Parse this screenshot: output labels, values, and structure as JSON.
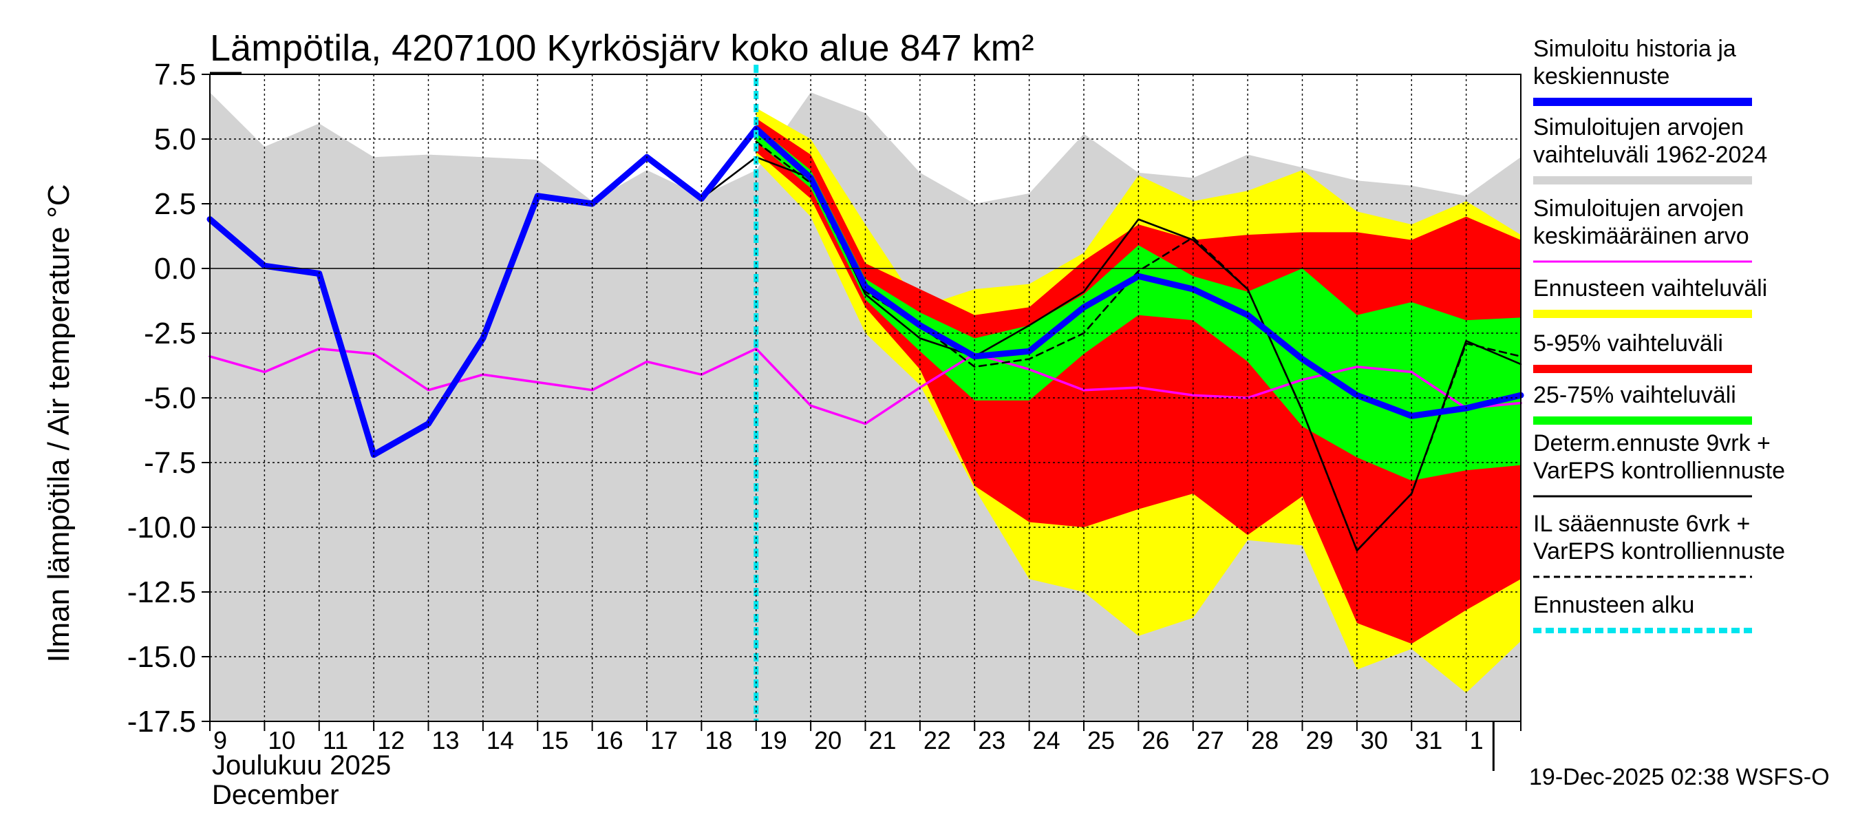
{
  "chart_data": {
    "type": "line",
    "title": "Lämpötila, 4207100 Kyrkösjärv koko alue 847 km²",
    "ylabel": "Ilman lämpötila / Air temperature    °C",
    "xlabel_line1": "Joulukuu  2025",
    "xlabel_line2": "December",
    "ylim": [
      -17.5,
      7.5
    ],
    "yticks": [
      7.5,
      5.0,
      2.5,
      0.0,
      -2.5,
      -5.0,
      -7.5,
      -10.0,
      -12.5,
      -15.0,
      -17.5
    ],
    "ytick_labels": [
      "7.5",
      "5.0",
      "2.5",
      "0.0",
      "-2.5",
      "-5.0",
      "-7.5",
      "-10.0",
      "-12.5",
      "-15.0",
      "-17.5"
    ],
    "x_day_labels": [
      "9",
      "10",
      "11",
      "12",
      "13",
      "14",
      "15",
      "16",
      "17",
      "18",
      "19",
      "20",
      "21",
      "22",
      "23",
      "24",
      "25",
      "26",
      "27",
      "28",
      "29",
      "30",
      "31",
      "1"
    ],
    "x_values": [
      0,
      1,
      2,
      3,
      4,
      5,
      6,
      7,
      8,
      9,
      10,
      11,
      12,
      13,
      14,
      15,
      16,
      17,
      18,
      19,
      20,
      21,
      22,
      23,
      24
    ],
    "forecast_start_x": 10,
    "month_boundary_x": 23.5,
    "series": [
      {
        "name": "Simuloitujen arvojen vaihteluväli 1962-2024",
        "kind": "band",
        "x": [
          0,
          1,
          2,
          3,
          4,
          5,
          6,
          7,
          8,
          9,
          10,
          11,
          12,
          13,
          14,
          15,
          16,
          17,
          18,
          19,
          20,
          21,
          22,
          23,
          24
        ],
        "upper": [
          6.8,
          4.7,
          5.6,
          4.3,
          4.4,
          4.3,
          4.2,
          2.6,
          3.8,
          2.8,
          3.8,
          6.8,
          6.0,
          3.7,
          2.5,
          2.9,
          5.2,
          3.7,
          3.5,
          4.4,
          3.9,
          3.4,
          3.2,
          2.8,
          4.3
        ],
        "lower": [
          -17.5,
          -17.5,
          -17.5,
          -17.5,
          -17.5,
          -17.5,
          -17.5,
          -17.5,
          -17.5,
          -17.5,
          -17.5,
          -17.5,
          -17.5,
          -17.5,
          -17.5,
          -17.5,
          -17.5,
          -17.5,
          -17.5,
          -17.5,
          -17.5,
          -17.5,
          -17.5,
          -17.5,
          -17.5
        ]
      },
      {
        "name": "Ennusteen vaihteluväli",
        "kind": "band",
        "x": [
          10,
          11,
          12,
          13,
          14,
          15,
          16,
          17,
          18,
          19,
          20,
          21,
          22,
          23,
          24
        ],
        "upper": [
          6.2,
          5.0,
          1.7,
          -1.5,
          -0.8,
          -0.6,
          0.6,
          3.6,
          2.6,
          3.0,
          3.8,
          2.2,
          1.7,
          2.6,
          1.3
        ],
        "lower": [
          4.2,
          2.0,
          -2.5,
          -4.5,
          -8.5,
          -12.0,
          -12.5,
          -14.2,
          -13.5,
          -10.5,
          -10.7,
          -15.5,
          -14.7,
          -16.4,
          -14.4
        ]
      },
      {
        "name": "5-95% vaihteluväli",
        "kind": "band",
        "x": [
          10,
          11,
          12,
          13,
          14,
          15,
          16,
          17,
          18,
          19,
          20,
          21,
          22,
          23,
          24
        ],
        "upper": [
          5.8,
          4.4,
          0.2,
          -0.8,
          -1.8,
          -1.5,
          0.3,
          1.7,
          1.1,
          1.3,
          1.4,
          1.4,
          1.1,
          2.0,
          1.1
        ],
        "lower": [
          4.5,
          2.7,
          -1.5,
          -3.9,
          -8.4,
          -9.8,
          -10.0,
          -9.3,
          -8.7,
          -10.3,
          -8.8,
          -13.7,
          -14.5,
          -13.2,
          -12.0
        ]
      },
      {
        "name": "25-75% vaihteluväli",
        "kind": "band",
        "x": [
          10,
          11,
          12,
          13,
          14,
          15,
          16,
          17,
          18,
          19,
          20,
          21,
          22,
          23,
          24
        ],
        "upper": [
          5.5,
          3.8,
          -0.4,
          -1.7,
          -2.7,
          -2.2,
          -1.0,
          0.9,
          -0.3,
          -0.9,
          0.0,
          -1.8,
          -1.3,
          -2.0,
          -1.9
        ],
        "lower": [
          4.9,
          3.1,
          -1.2,
          -3.2,
          -5.1,
          -5.1,
          -3.3,
          -1.8,
          -2.0,
          -3.6,
          -6.1,
          -7.3,
          -8.2,
          -7.8,
          -7.6
        ]
      },
      {
        "name": "Simuloitujen arvojen keskimääräinen arvo",
        "kind": "line",
        "color": "#ff00ff",
        "x": [
          0,
          1,
          2,
          3,
          4,
          5,
          6,
          7,
          8,
          9,
          10,
          11,
          12,
          13,
          14,
          15,
          16,
          17,
          18,
          19,
          20,
          21,
          22,
          23,
          24
        ],
        "values": [
          -3.4,
          -4.0,
          -3.1,
          -3.3,
          -4.7,
          -4.1,
          -4.4,
          -4.7,
          -3.6,
          -4.1,
          -3.1,
          -5.3,
          -6.0,
          -4.6,
          -3.3,
          -3.9,
          -4.7,
          -4.6,
          -4.9,
          -5.0,
          -4.3,
          -3.8,
          -4.0,
          -5.4,
          -5.2
        ]
      },
      {
        "name": "IL sääennuste 6vrk + VarEPS kontrolliennuste",
        "kind": "line",
        "color": "#000000",
        "dashed": true,
        "x": [
          10,
          11,
          12,
          13,
          14,
          15,
          16,
          17,
          18,
          19,
          20,
          21,
          22,
          23,
          24
        ],
        "values": [
          4.9,
          3.3,
          -0.9,
          -2.2,
          -3.8,
          -3.5,
          -2.5,
          -0.1,
          1.2,
          -0.8,
          -5.5,
          -10.9,
          -8.7,
          -2.9,
          -3.4
        ]
      },
      {
        "name": "Determ.ennuste 9vrk + VarEPS kontrolliennuste",
        "kind": "line",
        "color": "#000000",
        "x": [
          8,
          9,
          10,
          11,
          12,
          13,
          14,
          15,
          16,
          17,
          18,
          19,
          20,
          21,
          22,
          23,
          24
        ],
        "values": [
          4.3,
          2.7,
          4.3,
          3.5,
          -1.0,
          -2.7,
          -3.4,
          -2.2,
          -0.9,
          1.9,
          1.1,
          -0.8,
          -5.5,
          -10.9,
          -8.7,
          -2.8,
          -3.7
        ]
      },
      {
        "name": "Simuloitu historia ja keskiennuste",
        "kind": "line",
        "color": "#0000ff",
        "x": [
          0,
          1,
          2,
          3,
          4,
          5,
          6,
          7,
          8,
          9,
          10,
          11,
          12,
          13,
          14,
          15,
          16,
          17,
          18,
          19,
          20,
          21,
          22,
          23,
          24
        ],
        "values": [
          1.9,
          0.1,
          -0.2,
          -7.2,
          -6.0,
          -2.7,
          2.8,
          2.5,
          4.3,
          2.7,
          5.4,
          3.5,
          -0.7,
          -2.2,
          -3.4,
          -3.2,
          -1.5,
          -0.3,
          -0.8,
          -1.8,
          -3.5,
          -4.9,
          -5.7,
          -5.4,
          -4.9
        ]
      }
    ],
    "legend": [
      {
        "label_lines": [
          "Simuloitu historia ja",
          "keskiennuste"
        ],
        "color": "#0000ff",
        "style": "thick"
      },
      {
        "label_lines": [
          "Simuloitujen arvojen",
          "vaihteluväli 1962-2024"
        ],
        "color": "#d3d3d3",
        "style": "thick"
      },
      {
        "label_lines": [
          "Simuloitujen arvojen",
          "keskimääräinen arvo"
        ],
        "color": "#ff00ff",
        "style": "thin"
      },
      {
        "label_lines": [
          "Ennusteen vaihteluväli"
        ],
        "color": "#ffff00",
        "style": "thick"
      },
      {
        "label_lines": [
          "5-95% vaihteluväli"
        ],
        "color": "#ff0000",
        "style": "thick"
      },
      {
        "label_lines": [
          "25-75% vaihteluväli"
        ],
        "color": "#00ff00",
        "style": "thick"
      },
      {
        "label_lines": [
          "Determ.ennuste 9vrk +",
          "VarEPS kontrolliennuste"
        ],
        "color": "#000000",
        "style": "thin"
      },
      {
        "label_lines": [
          "IL sääennuste 6vrk  +",
          "VarEPS kontrolliennuste"
        ],
        "color": "#000000",
        "style": "dashed"
      },
      {
        "label_lines": [
          "Ennusteen alku"
        ],
        "color": "#00e5ee",
        "style": "dotted"
      }
    ],
    "timestamp": "19-Dec-2025 02:38 WSFS-O",
    "colors": {
      "history_band": "#d3d3d3",
      "yellow": "#ffff00",
      "red": "#ff0000",
      "green": "#00ff00",
      "blue": "#0000ff",
      "magenta": "#ff00ff",
      "cyan": "#00e5ee"
    }
  }
}
